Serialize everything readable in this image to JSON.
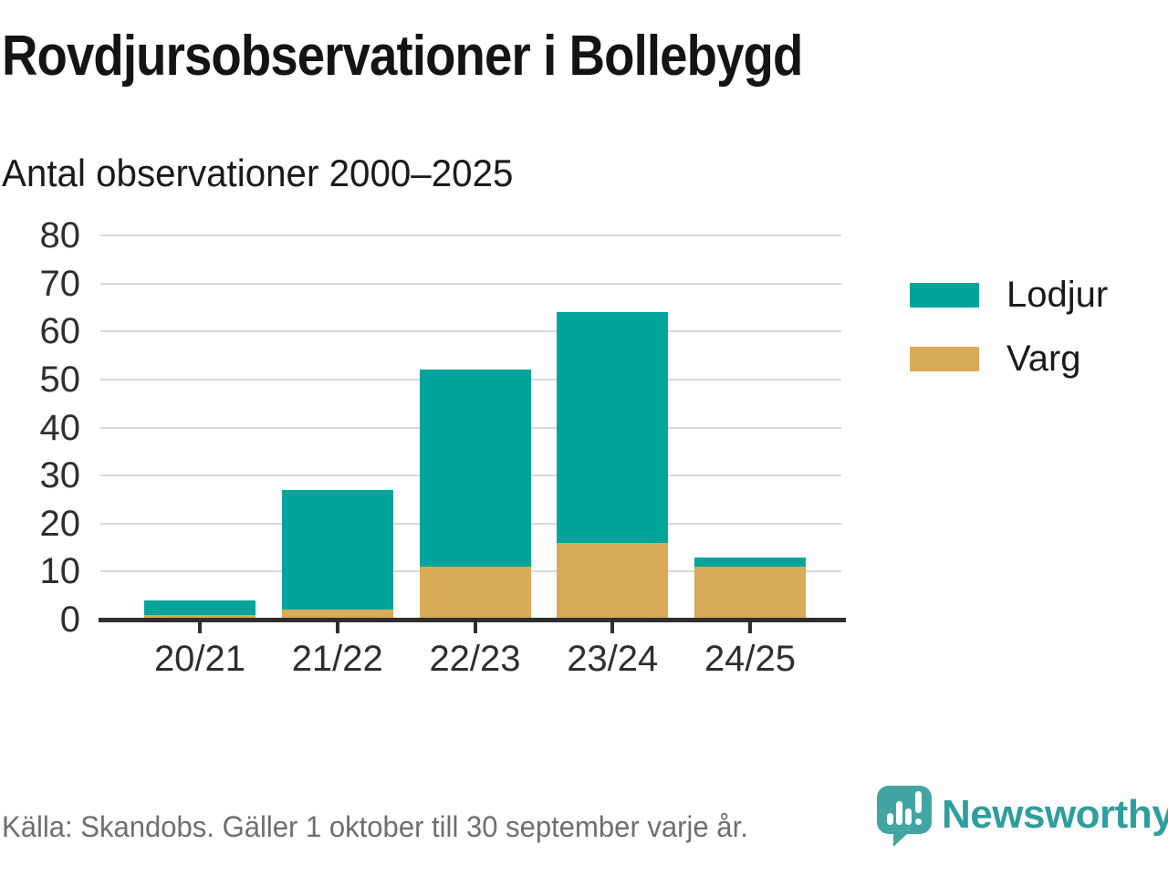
{
  "title": "Rovdjursobservationer i Bollebygd",
  "subtitle": "Antal observationer 2000–2025",
  "source": "Källa: Skandobs. Gäller 1 oktober till 30 september varje år.",
  "brand": {
    "name": "Newsworthy",
    "logo_icon": "speech-bubble-bar-chart-icon",
    "text_color": "#2f9e9c",
    "icon_color": "#43a5a2"
  },
  "colors": {
    "lodjur": "#00a49b",
    "varg": "#d9aa57",
    "grid": "#d9d9d9",
    "axis": "#2e2e2e",
    "title_text": "#141414",
    "muted_text": "#6e6e70"
  },
  "chart_data": {
    "type": "bar",
    "stacked": true,
    "title": "Rovdjursobservationer i Bollebygd",
    "subtitle": "Antal observationer 2000–2025",
    "categories": [
      "20/21",
      "21/22",
      "22/23",
      "23/24",
      "24/25"
    ],
    "series": [
      {
        "name": "Lodjur",
        "color": "#00a49b",
        "values": [
          3,
          25,
          41,
          48,
          2
        ]
      },
      {
        "name": "Varg",
        "color": "#d9aa57",
        "values": [
          1,
          2,
          11,
          16,
          11
        ]
      }
    ],
    "stack_order_bottom_to_top": [
      "Varg",
      "Lodjur"
    ],
    "totals": [
      4,
      27,
      52,
      64,
      13
    ],
    "xlabel": "",
    "ylabel": "",
    "ylim": [
      0,
      80
    ],
    "yticks": [
      0,
      10,
      20,
      30,
      40,
      50,
      60,
      70,
      80
    ],
    "grid": true,
    "legend_position": "right"
  }
}
